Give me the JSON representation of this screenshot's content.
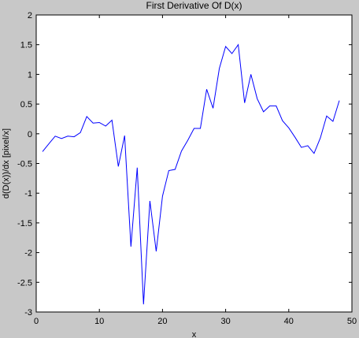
{
  "chart_data": {
    "type": "line",
    "title": "First Derivative Of D(x)",
    "xlabel": "x",
    "ylabel": "d(D(x))/dx  [pixel/x]",
    "xlim": [
      0,
      50
    ],
    "ylim": [
      -3,
      2
    ],
    "xticks": [
      0,
      10,
      20,
      30,
      40,
      50
    ],
    "yticks": [
      2,
      1.5,
      1,
      0.5,
      0,
      -0.5,
      -1,
      -1.5,
      -2,
      -2.5,
      -3
    ],
    "grid": false,
    "series": [
      {
        "color": "#0000ff",
        "x": [
          1,
          2,
          3,
          4,
          5,
          6,
          7,
          8,
          9,
          10,
          11,
          12,
          13,
          14,
          15,
          16,
          17,
          18,
          19,
          20,
          21,
          22,
          23,
          24,
          25,
          26,
          27,
          28,
          29,
          30,
          31,
          32,
          33,
          34,
          35,
          36,
          37,
          38,
          39,
          40,
          41,
          42,
          43,
          44,
          45,
          46,
          47,
          48
        ],
        "y": [
          -0.3,
          -0.17,
          -0.04,
          -0.08,
          -0.04,
          -0.05,
          0.02,
          0.29,
          0.18,
          0.19,
          0.13,
          0.23,
          -0.55,
          -0.03,
          -1.9,
          -0.57,
          -2.87,
          -1.13,
          -1.98,
          -1.05,
          -0.62,
          -0.6,
          -0.29,
          -0.11,
          0.09,
          0.09,
          0.75,
          0.43,
          1.1,
          1.47,
          1.35,
          1.5,
          0.52,
          1.0,
          0.59,
          0.37,
          0.47,
          0.47,
          0.22,
          0.1,
          -0.06,
          -0.23,
          -0.2,
          -0.33,
          -0.07,
          0.3,
          0.21,
          0.56
        ]
      }
    ],
    "colors": {
      "figure_background": "#c8c8c8",
      "axes_background": "#ffffff",
      "line": "#0000ff"
    }
  }
}
